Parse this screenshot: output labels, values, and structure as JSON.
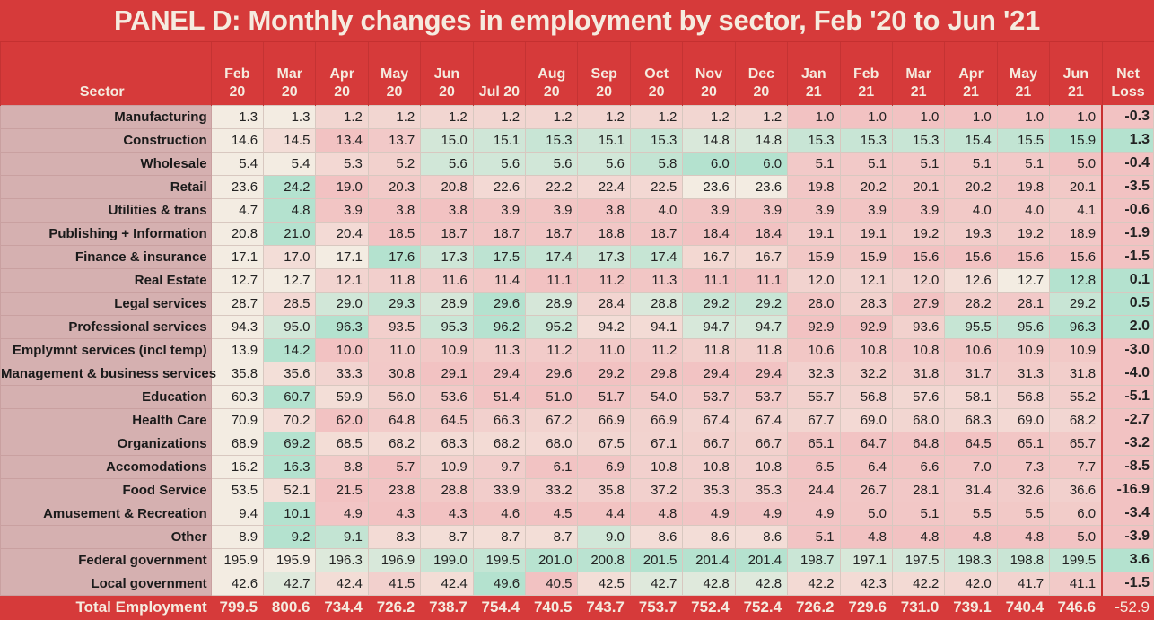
{
  "title": "PANEL D: Monthly changes in employment by sector, Feb '20 to Jun '21",
  "colors": {
    "header_bg": "#d63a3a",
    "header_text": "#f5ebdf",
    "sector_bg": "#d5b0b0",
    "neutral": "#f3ece2",
    "increase": "#b4e2cf",
    "decrease": "#f2c2c2"
  },
  "chart_data": {
    "type": "table",
    "title": "PANEL D: Monthly changes in employment by sector, Feb '20 to Jun '21",
    "row_header_label": "Sector",
    "columns": [
      {
        "line1": "Feb",
        "line2": "20"
      },
      {
        "line1": "Mar",
        "line2": "20"
      },
      {
        "line1": "Apr",
        "line2": "20"
      },
      {
        "line1": "May",
        "line2": "20"
      },
      {
        "line1": "Jun",
        "line2": "20"
      },
      {
        "line1": "",
        "line2": "Jul 20"
      },
      {
        "line1": "Aug",
        "line2": "20"
      },
      {
        "line1": "Sep",
        "line2": "20"
      },
      {
        "line1": "Oct",
        "line2": "20"
      },
      {
        "line1": "Nov",
        "line2": "20"
      },
      {
        "line1": "Dec",
        "line2": "20"
      },
      {
        "line1": "Jan",
        "line2": "21"
      },
      {
        "line1": "Feb",
        "line2": "21"
      },
      {
        "line1": "Mar",
        "line2": "21"
      },
      {
        "line1": "Apr",
        "line2": "21"
      },
      {
        "line1": "May",
        "line2": "21"
      },
      {
        "line1": "Jun",
        "line2": "21"
      }
    ],
    "net_label": {
      "line1": "Net",
      "line2": "Loss"
    },
    "rows": [
      {
        "sector": "Manufacturing",
        "values": [
          "1.3",
          "1.3",
          "1.2",
          "1.2",
          "1.2",
          "1.2",
          "1.2",
          "1.2",
          "1.2",
          "1.2",
          "1.2",
          "1.0",
          "1.0",
          "1.0",
          "1.0",
          "1.0",
          "1.0"
        ],
        "net": "-0.3"
      },
      {
        "sector": "Construction",
        "values": [
          "14.6",
          "14.5",
          "13.4",
          "13.7",
          "15.0",
          "15.1",
          "15.3",
          "15.1",
          "15.3",
          "14.8",
          "14.8",
          "15.3",
          "15.3",
          "15.3",
          "15.4",
          "15.5",
          "15.9"
        ],
        "net": "1.3"
      },
      {
        "sector": "Wholesale",
        "values": [
          "5.4",
          "5.4",
          "5.3",
          "5.2",
          "5.6",
          "5.6",
          "5.6",
          "5.6",
          "5.8",
          "6.0",
          "6.0",
          "5.1",
          "5.1",
          "5.1",
          "5.1",
          "5.1",
          "5.0"
        ],
        "net": "-0.4"
      },
      {
        "sector": "Retail",
        "values": [
          "23.6",
          "24.2",
          "19.0",
          "20.3",
          "20.8",
          "22.6",
          "22.2",
          "22.4",
          "22.5",
          "23.6",
          "23.6",
          "19.8",
          "20.2",
          "20.1",
          "20.2",
          "19.8",
          "20.1"
        ],
        "net": "-3.5"
      },
      {
        "sector": "Utilities & trans",
        "values": [
          "4.7",
          "4.8",
          "3.9",
          "3.8",
          "3.8",
          "3.9",
          "3.9",
          "3.8",
          "4.0",
          "3.9",
          "3.9",
          "3.9",
          "3.9",
          "3.9",
          "4.0",
          "4.0",
          "4.1"
        ],
        "net": "-0.6"
      },
      {
        "sector": "Publishing + Information",
        "values": [
          "20.8",
          "21.0",
          "20.4",
          "18.5",
          "18.7",
          "18.7",
          "18.7",
          "18.8",
          "18.7",
          "18.4",
          "18.4",
          "19.1",
          "19.1",
          "19.2",
          "19.3",
          "19.2",
          "18.9"
        ],
        "net": "-1.9"
      },
      {
        "sector": "Finance & insurance",
        "values": [
          "17.1",
          "17.0",
          "17.1",
          "17.6",
          "17.3",
          "17.5",
          "17.4",
          "17.3",
          "17.4",
          "16.7",
          "16.7",
          "15.9",
          "15.9",
          "15.6",
          "15.6",
          "15.6",
          "15.6"
        ],
        "net": "-1.5"
      },
      {
        "sector": "Real Estate",
        "values": [
          "12.7",
          "12.7",
          "12.1",
          "11.8",
          "11.6",
          "11.4",
          "11.1",
          "11.2",
          "11.3",
          "11.1",
          "11.1",
          "12.0",
          "12.1",
          "12.0",
          "12.6",
          "12.7",
          "12.8"
        ],
        "net": "0.1"
      },
      {
        "sector": "Legal services",
        "values": [
          "28.7",
          "28.5",
          "29.0",
          "29.3",
          "28.9",
          "29.6",
          "28.9",
          "28.4",
          "28.8",
          "29.2",
          "29.2",
          "28.0",
          "28.3",
          "27.9",
          "28.2",
          "28.1",
          "29.2"
        ],
        "net": "0.5"
      },
      {
        "sector": "Professional services",
        "values": [
          "94.3",
          "95.0",
          "96.3",
          "93.5",
          "95.3",
          "96.2",
          "95.2",
          "94.2",
          "94.1",
          "94.7",
          "94.7",
          "92.9",
          "92.9",
          "93.6",
          "95.5",
          "95.6",
          "96.3"
        ],
        "net": "2.0"
      },
      {
        "sector": "Emplymnt services (incl temp)",
        "values": [
          "13.9",
          "14.2",
          "10.0",
          "11.0",
          "10.9",
          "11.3",
          "11.2",
          "11.0",
          "11.2",
          "11.8",
          "11.8",
          "10.6",
          "10.8",
          "10.8",
          "10.6",
          "10.9",
          "10.9"
        ],
        "net": "-3.0"
      },
      {
        "sector": "Management & business services",
        "values": [
          "35.8",
          "35.6",
          "33.3",
          "30.8",
          "29.1",
          "29.4",
          "29.6",
          "29.2",
          "29.8",
          "29.4",
          "29.4",
          "32.3",
          "32.2",
          "31.8",
          "31.7",
          "31.3",
          "31.8"
        ],
        "net": "-4.0"
      },
      {
        "sector": "Education",
        "values": [
          "60.3",
          "60.7",
          "59.9",
          "56.0",
          "53.6",
          "51.4",
          "51.0",
          "51.7",
          "54.0",
          "53.7",
          "53.7",
          "55.7",
          "56.8",
          "57.6",
          "58.1",
          "56.8",
          "55.2"
        ],
        "net": "-5.1"
      },
      {
        "sector": "Health Care",
        "values": [
          "70.9",
          "70.2",
          "62.0",
          "64.8",
          "64.5",
          "66.3",
          "67.2",
          "66.9",
          "66.9",
          "67.4",
          "67.4",
          "67.7",
          "69.0",
          "68.0",
          "68.3",
          "69.0",
          "68.2"
        ],
        "net": "-2.7"
      },
      {
        "sector": "Organizations",
        "values": [
          "68.9",
          "69.2",
          "68.5",
          "68.2",
          "68.3",
          "68.2",
          "68.0",
          "67.5",
          "67.1",
          "66.7",
          "66.7",
          "65.1",
          "64.7",
          "64.8",
          "64.5",
          "65.1",
          "65.7"
        ],
        "net": "-3.2"
      },
      {
        "sector": "Accomodations",
        "values": [
          "16.2",
          "16.3",
          "8.8",
          "5.7",
          "10.9",
          "9.7",
          "6.1",
          "6.9",
          "10.8",
          "10.8",
          "10.8",
          "6.5",
          "6.4",
          "6.6",
          "7.0",
          "7.3",
          "7.7"
        ],
        "net": "-8.5"
      },
      {
        "sector": "Food Service",
        "values": [
          "53.5",
          "52.1",
          "21.5",
          "23.8",
          "28.8",
          "33.9",
          "33.2",
          "35.8",
          "37.2",
          "35.3",
          "35.3",
          "24.4",
          "26.7",
          "28.1",
          "31.4",
          "32.6",
          "36.6"
        ],
        "net": "-16.9"
      },
      {
        "sector": "Amusement & Recreation",
        "values": [
          "9.4",
          "10.1",
          "4.9",
          "4.3",
          "4.3",
          "4.6",
          "4.5",
          "4.4",
          "4.8",
          "4.9",
          "4.9",
          "4.9",
          "5.0",
          "5.1",
          "5.5",
          "5.5",
          "6.0"
        ],
        "net": "-3.4"
      },
      {
        "sector": "Other",
        "values": [
          "8.9",
          "9.2",
          "9.1",
          "8.3",
          "8.7",
          "8.7",
          "8.7",
          "9.0",
          "8.6",
          "8.6",
          "8.6",
          "5.1",
          "4.8",
          "4.8",
          "4.8",
          "4.8",
          "5.0"
        ],
        "net": "-3.9"
      },
      {
        "sector": "Federal government",
        "values": [
          "195.9",
          "195.9",
          "196.3",
          "196.9",
          "199.0",
          "199.5",
          "201.0",
          "200.8",
          "201.5",
          "201.4",
          "201.4",
          "198.7",
          "197.1",
          "197.5",
          "198.3",
          "198.8",
          "199.5"
        ],
        "net": "3.6"
      },
      {
        "sector": "Local government",
        "values": [
          "42.6",
          "42.7",
          "42.4",
          "41.5",
          "42.4",
          "49.6",
          "40.5",
          "42.5",
          "42.7",
          "42.8",
          "42.8",
          "42.2",
          "42.3",
          "42.2",
          "42.0",
          "41.7",
          "41.1"
        ],
        "net": "-1.5"
      }
    ],
    "total": {
      "label": "Total Employment",
      "values": [
        "799.5",
        "800.6",
        "734.4",
        "726.2",
        "738.7",
        "754.4",
        "740.5",
        "743.7",
        "753.7",
        "752.4",
        "752.4",
        "726.2",
        "729.6",
        "731.0",
        "739.1",
        "740.4",
        "746.6"
      ],
      "net": "-52.9"
    }
  }
}
